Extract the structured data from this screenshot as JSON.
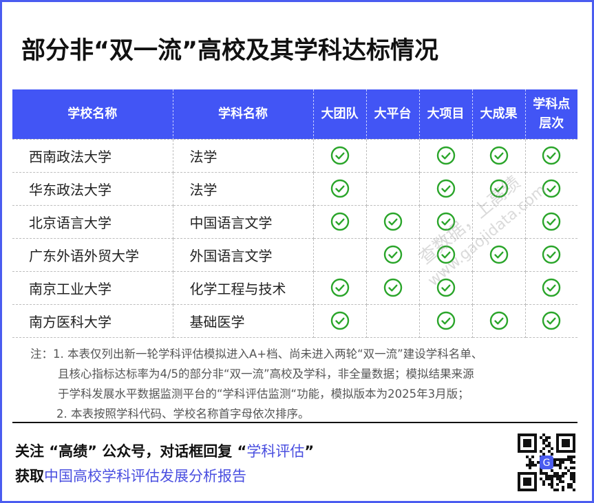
{
  "title": "部分非“双一流”高校及其学科达标情况",
  "accent_color": "#4255f5",
  "check_color": "#2aa52a",
  "table": {
    "headers": [
      "学校名称",
      "学科名称",
      "大团队",
      "大平台",
      "大项目",
      "大成果",
      "学科点层次"
    ],
    "header_last_lines": [
      "学科点",
      "层次"
    ],
    "rows": [
      {
        "school": "西南政法大学",
        "subject": "法学",
        "marks": [
          true,
          false,
          true,
          true,
          true
        ]
      },
      {
        "school": "华东政法大学",
        "subject": "法学",
        "marks": [
          true,
          false,
          true,
          true,
          true
        ]
      },
      {
        "school": "北京语言大学",
        "subject": "中国语言文学",
        "marks": [
          true,
          true,
          true,
          false,
          true
        ]
      },
      {
        "school": "广东外语外贸大学",
        "subject": "外国语言文学",
        "marks": [
          false,
          true,
          true,
          true,
          true
        ]
      },
      {
        "school": "南京工业大学",
        "subject": "化学工程与技术",
        "marks": [
          true,
          true,
          true,
          false,
          true
        ]
      },
      {
        "school": "南方医科大学",
        "subject": "基础医学",
        "marks": [
          true,
          false,
          true,
          true,
          true
        ]
      }
    ]
  },
  "notes": {
    "prefix": "注：",
    "n1a": "1. 本表仅列出新一轮学科评估模拟进入A+档、尚未进入两轮“双一流”建设学科名单、",
    "n1b": "且核心指标达标率为4/5的部分非“双一流”高校及学科，非全量数据；模拟结果来源",
    "n1c": "于学科发展水平数据监测平台的“学科评估监测“功能，模拟版本为2025年3月版；",
    "n2": "2. 本表按照学科代码、学校名称首字母依次排序。"
  },
  "footer": {
    "line1_text": "关注 “高绩” 公众号，对话框回复 “",
    "line1_highlight": "学科评估",
    "line1_end": "”",
    "line2_text": "获取",
    "line2_highlight": "中国高校学科评估发展分析报告"
  },
  "watermark": {
    "text": "查数据，上高绩",
    "url": "www.gaojidata.com"
  },
  "icons": {
    "check": "check-circle-icon",
    "qr": "qr-code"
  }
}
